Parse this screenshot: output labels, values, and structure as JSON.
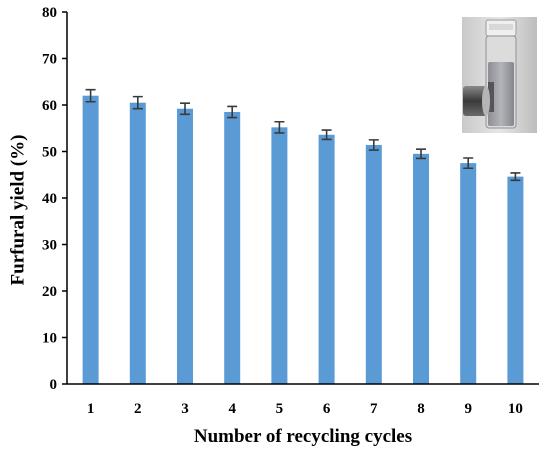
{
  "chart_data": {
    "type": "bar",
    "categories": [
      "1",
      "2",
      "3",
      "4",
      "5",
      "6",
      "7",
      "8",
      "9",
      "10"
    ],
    "values": [
      62,
      60.5,
      59.2,
      58.5,
      55.2,
      53.6,
      51.4,
      49.5,
      47.5,
      44.6
    ],
    "errors": [
      1.3,
      1.3,
      1.2,
      1.2,
      1.2,
      1.0,
      1.1,
      1.0,
      1.1,
      0.8
    ],
    "title": "",
    "xlabel": "Number of recycling cycles",
    "ylabel": "Furfural yield (%)",
    "ylim": [
      0,
      80
    ],
    "yticks": [
      "0",
      "10",
      "20",
      "30",
      "40",
      "50",
      "60",
      "70",
      "80"
    ],
    "bar_color": "#5b9bd5",
    "grid": false,
    "legend": "none"
  },
  "inset": {
    "icon": "vial-with-magnet-photo"
  }
}
